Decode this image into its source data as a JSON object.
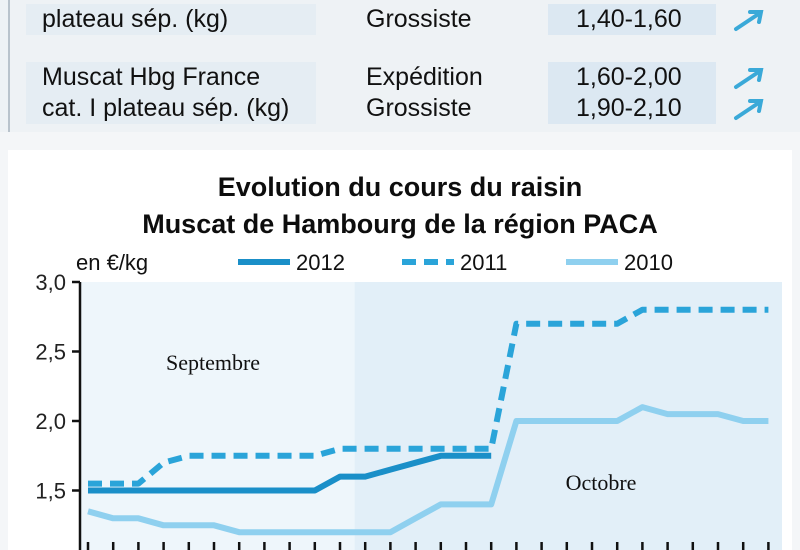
{
  "price_table": {
    "rows": [
      {
        "product_lines": [
          "plateau sép. (kg)"
        ],
        "stages": [
          "Grossiste"
        ],
        "prices": [
          "1,40-1,60"
        ],
        "trends": [
          "up"
        ]
      },
      {
        "product_lines": [
          "Muscat Hbg France",
          "cat. I plateau sép. (kg)"
        ],
        "stages": [
          "Expédition",
          "Grossiste"
        ],
        "prices": [
          "1,60-2,00",
          "1,90-2,10"
        ],
        "trends": [
          "up",
          "up"
        ]
      }
    ]
  },
  "colors": {
    "series_2012": "#1a8fc8",
    "series_2011": "#2aa4d9",
    "series_2010": "#8fd0ef",
    "bg_septembre": "#eef6fb",
    "bg_octobre": "#e2eff8",
    "trend_arrow": "#3aa9d8"
  },
  "chart_data": {
    "type": "line",
    "title_line1": "Evolution du cours du raisin",
    "title_line2": "Muscat de Hambourg de la région PACA",
    "ylabel": "en €/kg",
    "ylim": [
      1.0,
      3.0
    ],
    "yticks": [
      "1,0",
      "1,5",
      "2,0",
      "2,5",
      "3,0"
    ],
    "ytick_values": [
      1.0,
      1.5,
      2.0,
      2.5,
      3.0
    ],
    "legend_position": "top",
    "period_labels": [
      "Septembre",
      "Octobre"
    ],
    "x": [
      1,
      2,
      3,
      4,
      5,
      6,
      7,
      8,
      9,
      10,
      11,
      12,
      13,
      14,
      15,
      16,
      17,
      18,
      19,
      20,
      21,
      22,
      23,
      24,
      25,
      26,
      27,
      28
    ],
    "series": [
      {
        "name": "2012",
        "style": "solid-thick",
        "values": [
          1.5,
          1.5,
          1.5,
          1.5,
          1.5,
          1.5,
          1.5,
          1.5,
          1.5,
          1.5,
          1.6,
          1.6,
          1.65,
          1.7,
          1.75,
          1.75,
          1.75,
          null,
          null,
          null,
          null,
          null,
          null,
          null,
          null,
          null,
          null,
          null
        ]
      },
      {
        "name": "2011",
        "style": "dashed",
        "values": [
          1.55,
          1.55,
          1.55,
          1.7,
          1.75,
          1.75,
          1.75,
          1.75,
          1.75,
          1.75,
          1.8,
          1.8,
          1.8,
          1.8,
          1.8,
          1.8,
          1.8,
          2.7,
          2.7,
          2.7,
          2.7,
          2.7,
          2.8,
          2.8,
          2.8,
          2.8,
          2.8,
          2.8
        ]
      },
      {
        "name": "2010",
        "style": "solid-light",
        "values": [
          1.35,
          1.3,
          1.3,
          1.25,
          1.25,
          1.25,
          1.2,
          1.2,
          1.2,
          1.2,
          1.2,
          1.2,
          1.2,
          1.3,
          1.4,
          1.4,
          1.4,
          2.0,
          2.0,
          2.0,
          2.0,
          2.0,
          2.1,
          2.05,
          2.05,
          2.05,
          2.0,
          2.0
        ]
      }
    ]
  }
}
